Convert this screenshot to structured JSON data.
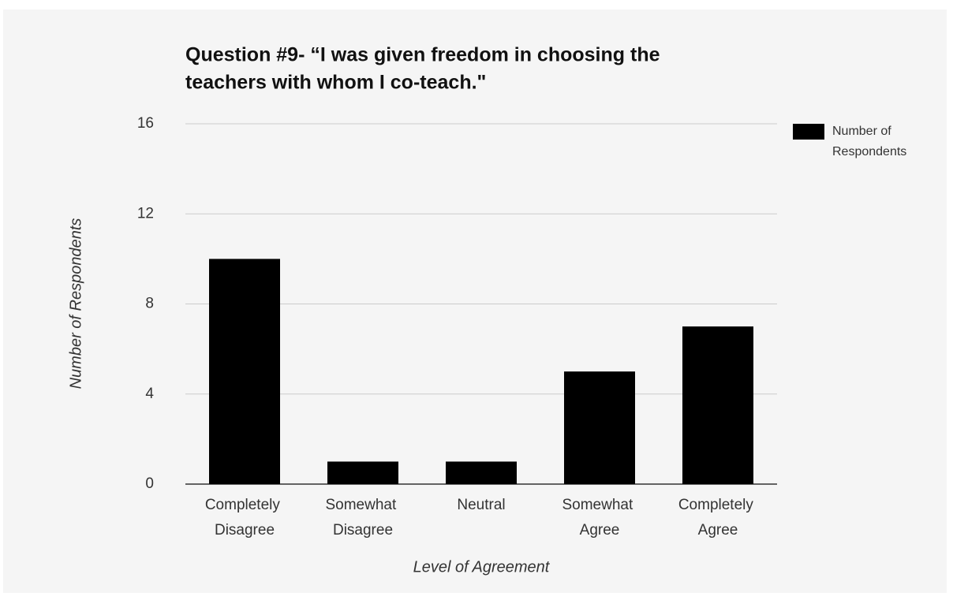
{
  "chart_data": {
    "type": "bar",
    "title": [
      "Question #9- “I was given freedom in choosing the",
      "teachers with whom I co-teach.\""
    ],
    "x_label": "Level of Agreement",
    "y_label": "Number of Respondents",
    "categories": [
      "Completely Disagree",
      "Somewhat Disagree",
      "Neutral",
      "Somewhat Agree",
      "Completely Agree"
    ],
    "series": [
      {
        "name": "Number of Respondents",
        "color": "#000000",
        "values": [
          10,
          1,
          1,
          5,
          7
        ]
      }
    ],
    "ylim": [
      0,
      16
    ],
    "yticks": [
      0,
      4,
      8,
      12,
      16
    ],
    "grid": true,
    "legend": "right"
  }
}
